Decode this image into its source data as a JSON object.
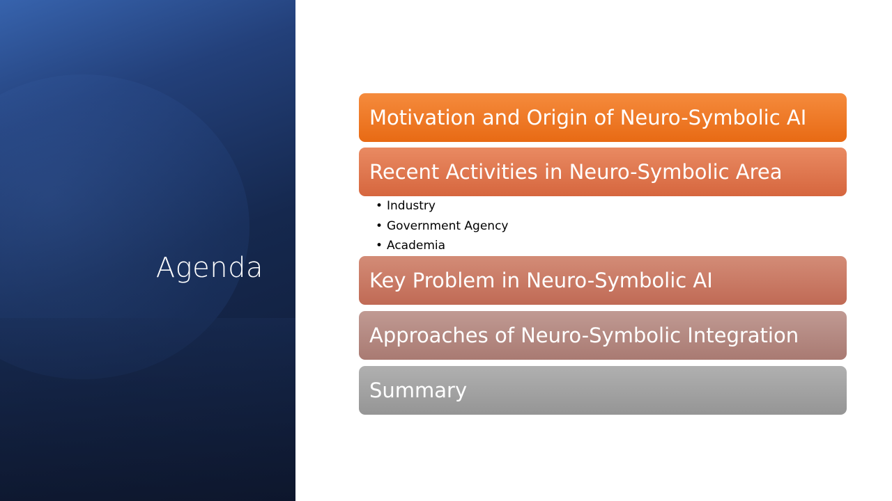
{
  "slide": {
    "title": "Agenda"
  },
  "agenda": {
    "items": [
      {
        "label": "Motivation and Origin of Neuro-Symbolic AI",
        "color_top": "#f58b3d",
        "color_bottom": "#e86a14"
      },
      {
        "label": "Recent Activities in Neuro-Symbolic Area",
        "color_top": "#e98a62",
        "color_bottom": "#d6663e"
      },
      {
        "label": "Key Problem in Neuro-Symbolic AI",
        "color_top": "#d38c77",
        "color_bottom": "#c06a55"
      },
      {
        "label": "Approaches of Neuro-Symbolic Integration",
        "color_top": "#c09a93",
        "color_bottom": "#a97a72"
      },
      {
        "label": "Summary",
        "color_top": "#b0b0b0",
        "color_bottom": "#959595"
      }
    ],
    "subitems": [
      {
        "label": "Industry"
      },
      {
        "label": "Government Agency"
      },
      {
        "label": "Academia"
      }
    ]
  }
}
